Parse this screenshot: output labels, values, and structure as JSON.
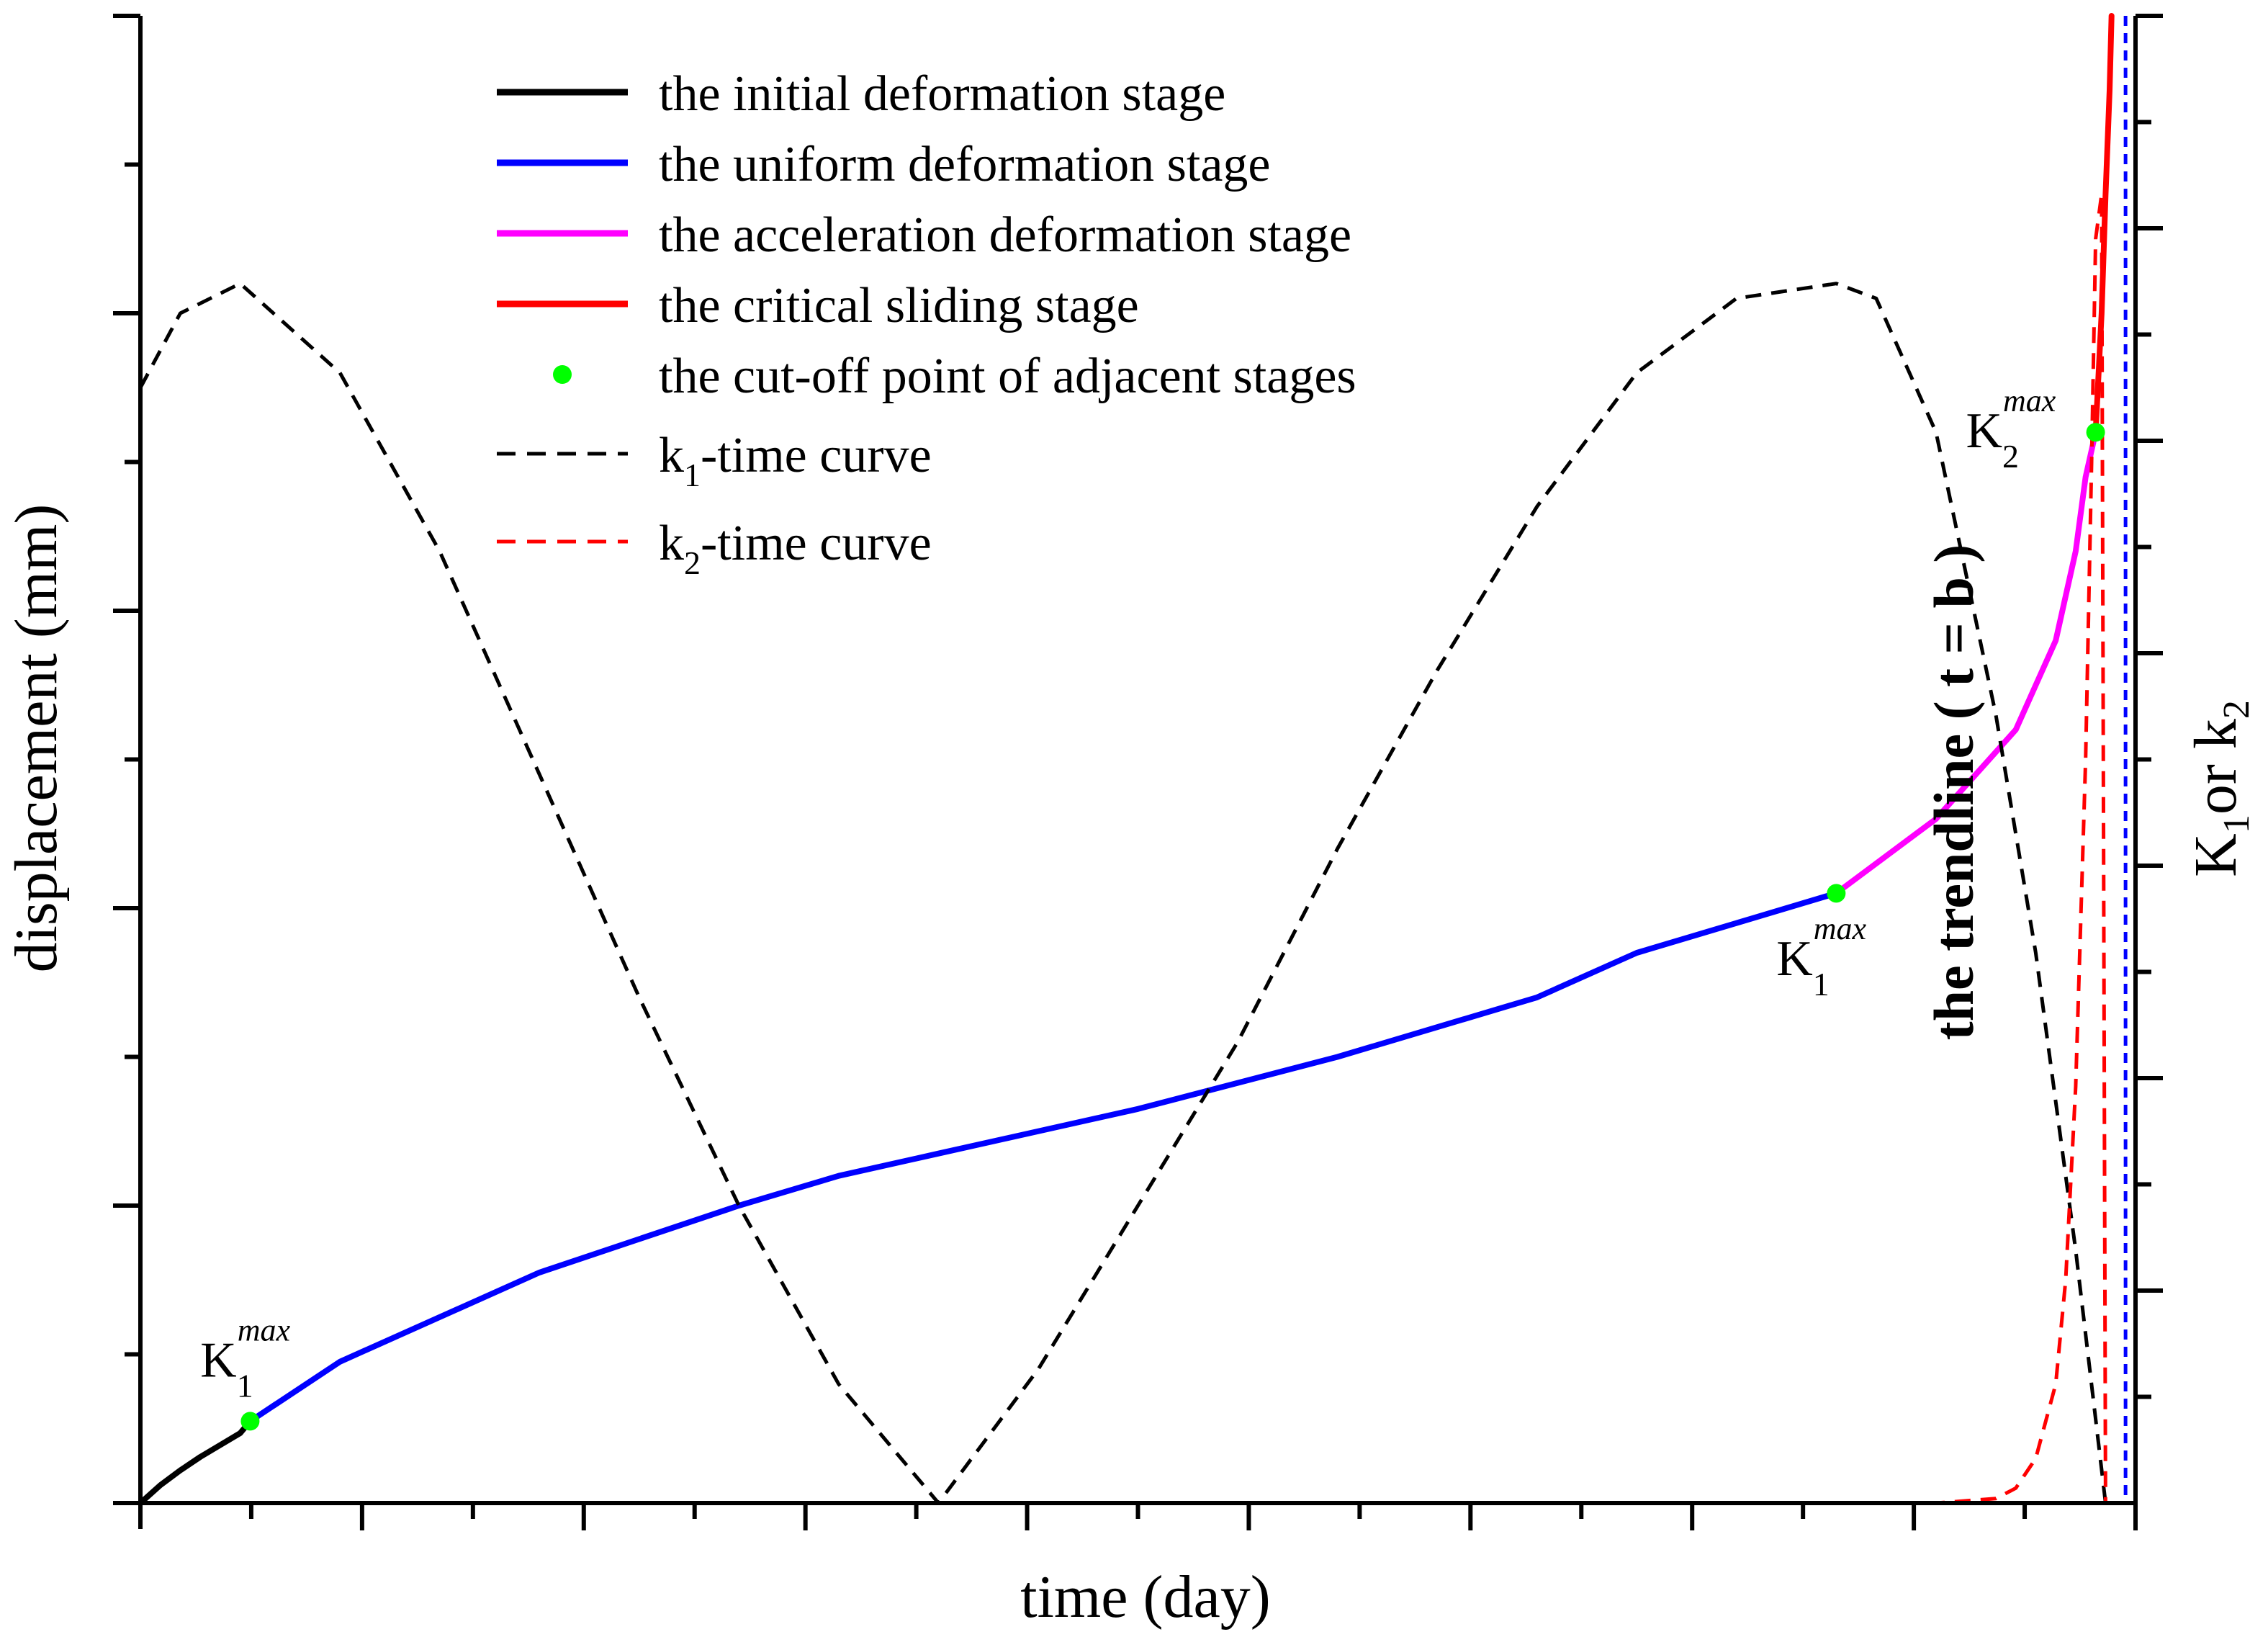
{
  "chart_data": {
    "type": "line",
    "title": "",
    "xlabel": "time (day)",
    "ylabel_left": "displacement (mm)",
    "ylabel_right_prefix": "K",
    "ylabel_right_sub1": "1",
    "ylabel_right_mid": "or  k",
    "ylabel_right_sub2": "2",
    "xlim": [
      0,
      1
    ],
    "ylim": [
      0,
      1
    ],
    "x_tick_labels": [],
    "y_tick_labels": [],
    "grid": false,
    "legend_position": "top-center",
    "legend": [
      {
        "label": "the initial deformation stage",
        "kind": "line",
        "color": "#000000",
        "dash": false
      },
      {
        "label": "the uniform deformation stage",
        "kind": "line",
        "color": "#0000ff",
        "dash": false
      },
      {
        "label": "the acceleration deformation stage",
        "kind": "line",
        "color": "#ff00ff",
        "dash": false
      },
      {
        "label": "the critical sliding stage",
        "kind": "line",
        "color": "#ff0000",
        "dash": false
      },
      {
        "label": "the cut-off point of adjacent stages",
        "kind": "marker",
        "color": "#00ff00",
        "dash": false
      },
      {
        "label": "k",
        "sub": "1",
        "suffix": "-time curve",
        "kind": "line",
        "color": "#000000",
        "dash": true
      },
      {
        "label": "k",
        "sub": "2",
        "suffix": "-time curve",
        "kind": "line",
        "color": "#ff0000",
        "dash": true
      }
    ],
    "series": [
      {
        "name": "the initial deformation stage",
        "color": "#000000",
        "style": "solid",
        "x": [
          0.0,
          0.01,
          0.02,
          0.03,
          0.04,
          0.05,
          0.055
        ],
        "y": [
          0.0,
          0.012,
          0.022,
          0.031,
          0.039,
          0.047,
          0.055
        ]
      },
      {
        "name": "the uniform deformation stage",
        "color": "#0000ff",
        "style": "solid",
        "x": [
          0.055,
          0.1,
          0.2,
          0.3,
          0.35,
          0.4,
          0.5,
          0.6,
          0.7,
          0.75,
          0.8,
          0.85
        ],
        "y": [
          0.055,
          0.095,
          0.155,
          0.2,
          0.22,
          0.235,
          0.265,
          0.3,
          0.34,
          0.37,
          0.39,
          0.41
        ]
      },
      {
        "name": "the acceleration deformation stage",
        "color": "#ff00ff",
        "style": "solid",
        "x": [
          0.85,
          0.9,
          0.94,
          0.96,
          0.97,
          0.975,
          0.98
        ],
        "y": [
          0.41,
          0.46,
          0.52,
          0.58,
          0.64,
          0.69,
          0.72
        ]
      },
      {
        "name": "the critical sliding stage",
        "color": "#ff0000",
        "style": "solid",
        "x": [
          0.98,
          0.983,
          0.985,
          0.987,
          0.988
        ],
        "y": [
          0.72,
          0.8,
          0.88,
          0.95,
          1.0
        ]
      },
      {
        "name": "k1-time curve",
        "color": "#000000",
        "style": "dashed",
        "x": [
          0.0,
          0.02,
          0.05,
          0.1,
          0.15,
          0.2,
          0.25,
          0.3,
          0.35,
          0.4,
          0.45,
          0.5,
          0.55,
          0.6,
          0.65,
          0.7,
          0.75,
          0.8,
          0.85,
          0.87,
          0.9,
          0.93,
          0.95,
          0.97,
          0.985
        ],
        "y": [
          0.75,
          0.8,
          0.82,
          0.76,
          0.64,
          0.49,
          0.34,
          0.2,
          0.08,
          0.0,
          0.09,
          0.2,
          0.31,
          0.44,
          0.56,
          0.67,
          0.76,
          0.81,
          0.82,
          0.81,
          0.72,
          0.53,
          0.37,
          0.17,
          0.0
        ]
      },
      {
        "name": "k2-time curve",
        "color": "#ff0000",
        "style": "dashed",
        "x": [
          0.0,
          0.9,
          0.93,
          0.94,
          0.95,
          0.96,
          0.965,
          0.97,
          0.975,
          0.978,
          0.98,
          0.983,
          0.985
        ],
        "y": [
          0.0,
          0.0,
          0.003,
          0.01,
          0.03,
          0.08,
          0.15,
          0.28,
          0.5,
          0.7,
          0.85,
          0.88,
          0.0
        ]
      }
    ],
    "cutoff_points": [
      {
        "x": 0.055,
        "y": 0.055
      },
      {
        "x": 0.85,
        "y": 0.41
      },
      {
        "x": 0.98,
        "y": 0.72
      }
    ],
    "trendline": {
      "x": 0.995,
      "label": "the trendline ( t = b )",
      "color": "#0000ff"
    },
    "annotations": [
      {
        "base": "K",
        "sub": "1",
        "sup": "max",
        "x": 0.03,
        "y": 0.085
      },
      {
        "base": "K",
        "sub": "1",
        "sup": "max",
        "x": 0.82,
        "y": 0.355
      },
      {
        "base": "K",
        "sub": "2",
        "sup": "max",
        "x": 0.915,
        "y": 0.71
      }
    ]
  }
}
